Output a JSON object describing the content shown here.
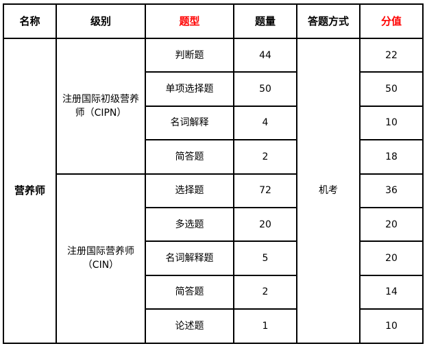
{
  "headers": [
    "名称",
    "级别",
    "题型",
    "题量",
    "答题方式",
    "分值"
  ],
  "accent_color": "#ff0000",
  "name": "营养师",
  "method": "机考",
  "groups": [
    {
      "level": "注册国际初级营养师（CIPN）",
      "rows": [
        {
          "type": "判断题",
          "count": "44",
          "score": "22"
        },
        {
          "type": "单项选择题",
          "count": "50",
          "score": "50"
        },
        {
          "type": "名词解释",
          "count": "4",
          "score": "10"
        },
        {
          "type": "简答题",
          "count": "2",
          "score": "18"
        }
      ]
    },
    {
      "level": "注册国际营养师（CIN）",
      "rows": [
        {
          "type": "选择题",
          "count": "72",
          "score": "36"
        },
        {
          "type": "多选题",
          "count": "20",
          "score": "20"
        },
        {
          "type": "名词解释题",
          "count": "5",
          "score": "20"
        },
        {
          "type": "简答题",
          "count": "2",
          "score": "14"
        },
        {
          "type": "论述题",
          "count": "1",
          "score": "10"
        }
      ]
    }
  ]
}
